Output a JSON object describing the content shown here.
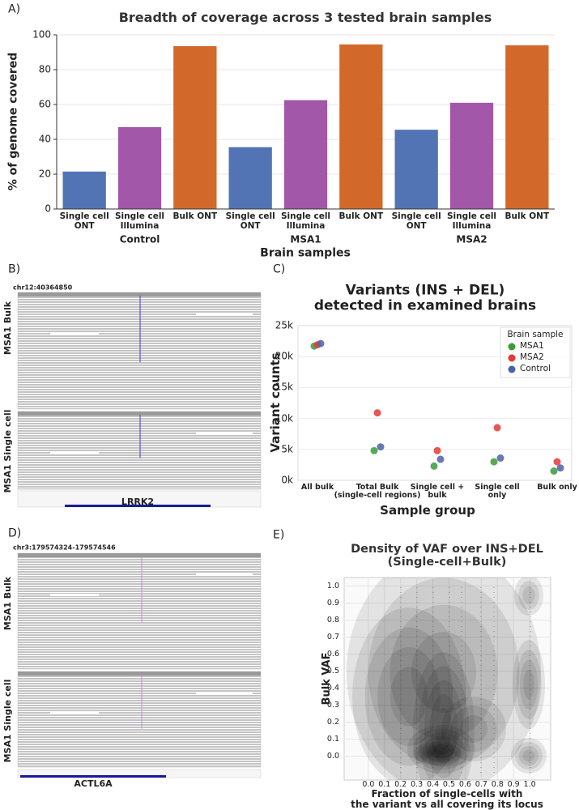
{
  "figure": {
    "panel_labels": [
      "A)",
      "B)",
      "C)",
      "D)",
      "E)"
    ]
  },
  "igv_panels": [
    {
      "locus": "chr12:40364850",
      "tracks": [
        "MSA1 Bulk",
        "MSA1 Single cell"
      ],
      "gene": "LRRK2"
    },
    {
      "locus": "chr3:179574324-179574546",
      "tracks": [
        "MSA1 Bulk",
        "MSA1 Single cell"
      ],
      "gene": "ACTL6A"
    }
  ],
  "chart_data": [
    {
      "type": "bar",
      "title": "Breadth of coverage across 3 tested brain samples",
      "y_label": "% of genome covered",
      "x_label": "Brain samples",
      "categories": [
        "Single cell\nONT",
        "Single cell\nIllumina",
        "Bulk ONT",
        "Single cell\nONT",
        "Single cell\nIllumina",
        "Bulk ONT",
        "Single cell\nONT",
        "Single cell\nIllumina",
        "Bulk ONT"
      ],
      "values": [
        21.5,
        47,
        93.5,
        35.5,
        62.5,
        94.5,
        45.5,
        61,
        94
      ],
      "colors": [
        "#5274b4",
        "#a357a8",
        "#d2692a",
        "#5274b4",
        "#a357a8",
        "#d2692a",
        "#5274b4",
        "#a357a8",
        "#d2692a"
      ],
      "groups": [
        "Control",
        "MSA1",
        "MSA2"
      ],
      "ylim": [
        0,
        100
      ],
      "yticks": [
        0,
        20,
        40,
        60,
        80,
        100
      ],
      "grid": true
    },
    {
      "type": "scatter",
      "title": "Variants (INS + DEL)\ndetected in examined brains",
      "y_label": "Variant counts",
      "x_label": "Sample group",
      "categories": [
        "All bulk",
        "Total Bulk\n(single-cell regions)",
        "Single cell +\nbulk",
        "Single cell\nonly",
        "Bulk only"
      ],
      "series": [
        {
          "name": "MSA1",
          "color": "#3b9a3b",
          "values": [
            21700,
            4800,
            2300,
            3000,
            1500
          ]
        },
        {
          "name": "MSA2",
          "color": "#e53a35",
          "values": [
            21900,
            10900,
            4800,
            8500,
            3000
          ]
        },
        {
          "name": "Control",
          "color": "#4a63a8",
          "values": [
            22100,
            5400,
            3400,
            3600,
            2000
          ]
        }
      ],
      "legend_title": "Brain sample",
      "legend": "upper right",
      "ylim": [
        0,
        25000
      ],
      "yticks": [
        {
          "value": 0,
          "label": "0k"
        },
        {
          "value": 5000,
          "label": "5k"
        },
        {
          "value": 10000,
          "label": "10k"
        },
        {
          "value": 15000,
          "label": "15k"
        },
        {
          "value": 20000,
          "label": "20k"
        },
        {
          "value": 25000,
          "label": "25k"
        }
      ],
      "grid": true
    },
    {
      "type": "density",
      "title": "Density of VAF over INS+DEL\n(Single-cell+Bulk)",
      "y_label": "Bulk VAF",
      "x_label": "Fraction of single-cells with\nthe variant vs all covering its locus",
      "xlim": [
        -0.15,
        1.13
      ],
      "ylim": [
        -0.14,
        1.05
      ],
      "xticks": [
        {
          "value": 0,
          "label": "0.0"
        },
        0.1,
        0.2,
        0.3,
        0.4,
        0.5,
        0.6,
        0.7,
        0.8,
        0.9,
        {
          "value": 1,
          "label": "1.0"
        }
      ],
      "yticks": [
        {
          "value": 0,
          "label": "0.0"
        },
        0.1,
        0.2,
        0.3,
        0.4,
        0.5,
        0.6,
        0.7,
        0.8,
        0.9,
        {
          "value": 1,
          "label": "1.0"
        }
      ],
      "grid": true
    }
  ]
}
